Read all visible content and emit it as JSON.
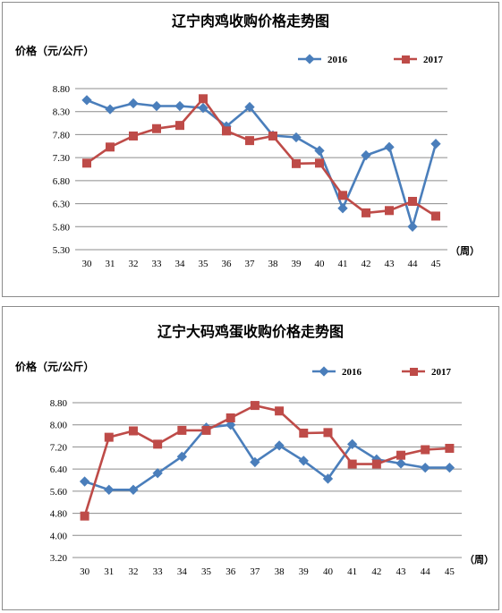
{
  "chart_data": [
    {
      "type": "line",
      "title": "辽宁肉鸡收购价格走势图",
      "ylabel": "价格（元/公斤）",
      "xunit": "（周）",
      "categories": [
        "30",
        "31",
        "32",
        "33",
        "34",
        "35",
        "36",
        "37",
        "38",
        "39",
        "40",
        "41",
        "42",
        "43",
        "44",
        "45"
      ],
      "yticks": [
        "5.30",
        "5.80",
        "6.30",
        "6.80",
        "7.30",
        "7.80",
        "8.30",
        "8.80"
      ],
      "ylim": [
        5.3,
        8.8
      ],
      "grid": true,
      "legend": "top-right",
      "series": [
        {
          "name": "2016",
          "color": "#4a7ebb",
          "marker": "diamond",
          "values": [
            8.55,
            8.35,
            8.48,
            8.42,
            8.42,
            8.38,
            7.98,
            8.4,
            7.78,
            7.74,
            7.45,
            6.2,
            7.35,
            7.53,
            5.8,
            7.6
          ]
        },
        {
          "name": "2017",
          "color": "#be4b48",
          "marker": "square",
          "values": [
            7.18,
            7.53,
            7.77,
            7.93,
            8.0,
            8.58,
            7.88,
            7.67,
            7.77,
            7.17,
            7.18,
            6.48,
            6.1,
            6.15,
            6.35,
            6.03
          ]
        }
      ]
    },
    {
      "type": "line",
      "title": "辽宁大码鸡蛋收购价格走势图",
      "ylabel": "价格（元/公斤）",
      "xunit": "（周）",
      "categories": [
        "30",
        "31",
        "32",
        "33",
        "34",
        "35",
        "36",
        "37",
        "38",
        "39",
        "40",
        "41",
        "42",
        "43",
        "44",
        "45"
      ],
      "yticks": [
        "3.20",
        "4.00",
        "4.80",
        "5.60",
        "6.40",
        "7.20",
        "8.00",
        "8.80"
      ],
      "ylim": [
        3.2,
        8.8
      ],
      "grid": true,
      "legend": "top-right",
      "series": [
        {
          "name": "2016",
          "color": "#4a7ebb",
          "marker": "diamond",
          "values": [
            5.95,
            5.65,
            5.65,
            6.25,
            6.85,
            7.9,
            8.0,
            6.65,
            7.25,
            6.7,
            6.05,
            7.3,
            6.75,
            6.6,
            6.45,
            6.45
          ]
        },
        {
          "name": "2017",
          "color": "#be4b48",
          "marker": "square",
          "values": [
            4.7,
            7.55,
            7.78,
            7.3,
            7.8,
            7.8,
            8.25,
            8.7,
            8.5,
            7.7,
            7.72,
            6.58,
            6.58,
            6.9,
            7.1,
            7.15
          ]
        }
      ]
    }
  ]
}
